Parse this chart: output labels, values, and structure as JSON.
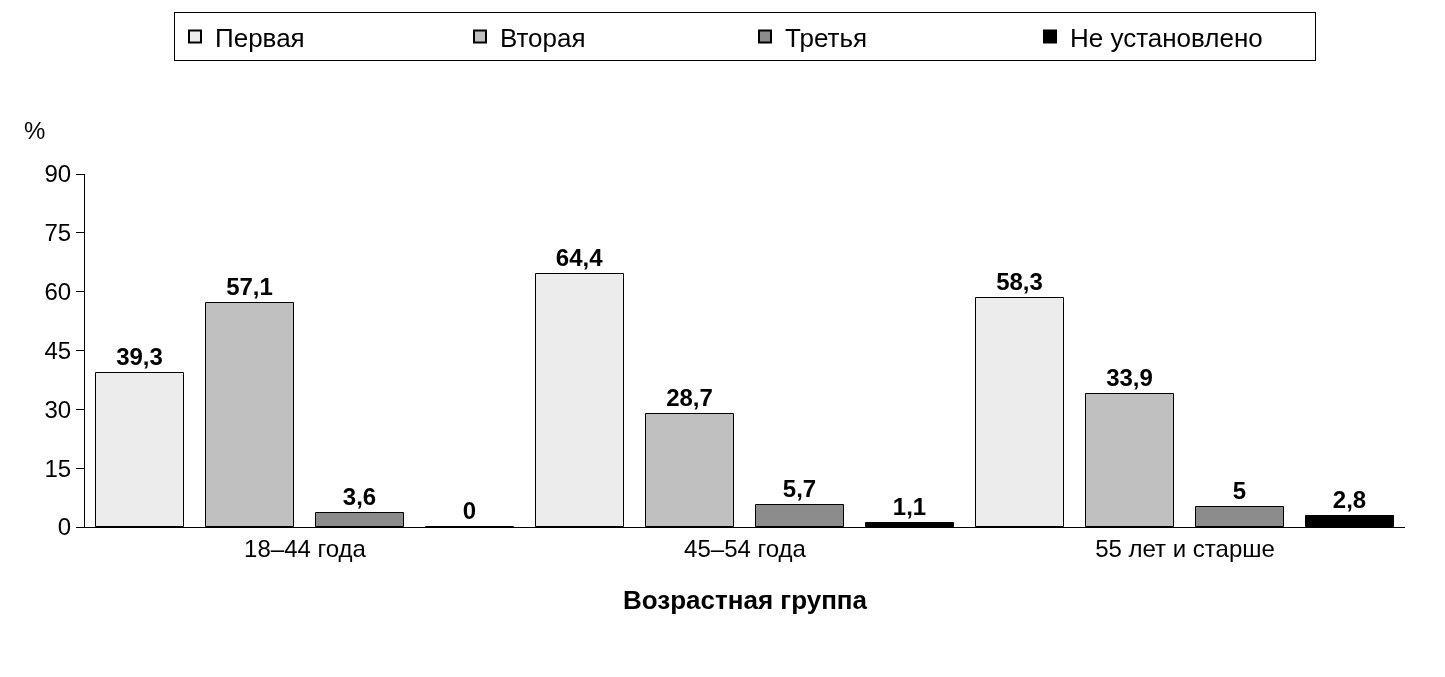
{
  "chart_data": {
    "type": "bar",
    "xlabel": "Возрастная группа",
    "ylabel": "%",
    "categories": [
      "18–44 года",
      "45–54 года",
      "55 лет и старше"
    ],
    "series": [
      {
        "name": "Первая",
        "color": "#ececec",
        "values": [
          39.3,
          64.4,
          58.3
        ],
        "value_labels": [
          "39,3",
          "64,4",
          "58,3"
        ]
      },
      {
        "name": "Вторая",
        "color": "#c0c0c0",
        "values": [
          57.1,
          28.7,
          33.9
        ],
        "value_labels": [
          "57,1",
          "28,7",
          "33,9"
        ]
      },
      {
        "name": "Третья",
        "color": "#8c8c8c",
        "values": [
          3.6,
          5.7,
          5
        ],
        "value_labels": [
          "3,6",
          "5,7",
          "5"
        ]
      },
      {
        "name": "Не установлено",
        "color": "#000000",
        "values": [
          0,
          1.1,
          2.8
        ],
        "value_labels": [
          "0",
          "1,1",
          "2,8"
        ]
      }
    ],
    "ylim": [
      0,
      90
    ],
    "yticks": [
      0,
      15,
      30,
      45,
      60,
      75,
      90
    ],
    "legend": "top"
  }
}
